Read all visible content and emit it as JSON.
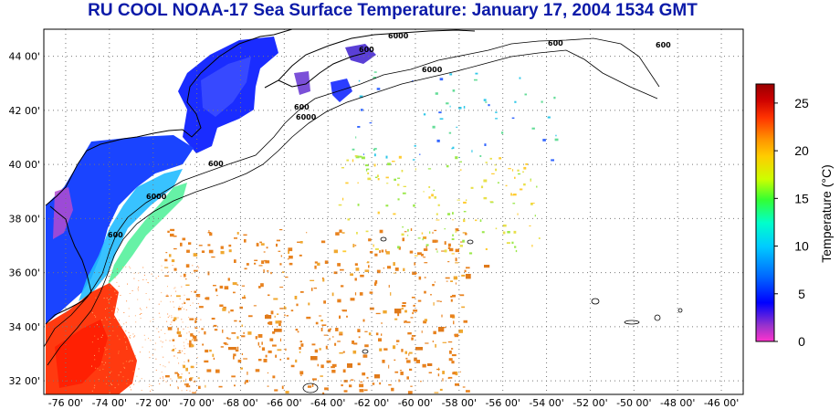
{
  "title": "RU COOL  NOAA-17  Sea Surface Temperature:  January 17, 2004 1534 GMT",
  "map": {
    "lon_range": [
      -77,
      -45
    ],
    "lat_range": [
      31.5,
      45
    ],
    "lon_ticks": [
      "-76 00'",
      "-74 00'",
      "-72 00'",
      "-70 00'",
      "-68 00'",
      "-66 00'",
      "-64 00'",
      "-62 00'",
      "-60 00'",
      "-58 00'",
      "-56 00'",
      "-54 00'",
      "-52 00'",
      "-50 00'",
      "-48 00'",
      "-46 00'"
    ],
    "lat_ticks": [
      "44 00'",
      "42 00'",
      "40 00'",
      "38 00'",
      "36 00'",
      "34 00'",
      "32 00'"
    ],
    "contour_labels": [
      "600",
      "6000",
      "600",
      "6000",
      "600",
      "6000",
      "600",
      "600",
      "6000",
      "600"
    ],
    "grid": "dotted"
  },
  "colorbar": {
    "label": "Temperature (°C)",
    "ticks": [
      "25",
      "20",
      "15",
      "10",
      "5",
      "0"
    ],
    "min": 0,
    "max": 27,
    "colors": [
      "#ff33cc",
      "#9933cc",
      "#0000ff",
      "#0066ff",
      "#00ccff",
      "#00ffcc",
      "#33ff33",
      "#ccff00",
      "#ffcc00",
      "#ff9900",
      "#ff3300",
      "#cc0000",
      "#990000"
    ]
  }
}
